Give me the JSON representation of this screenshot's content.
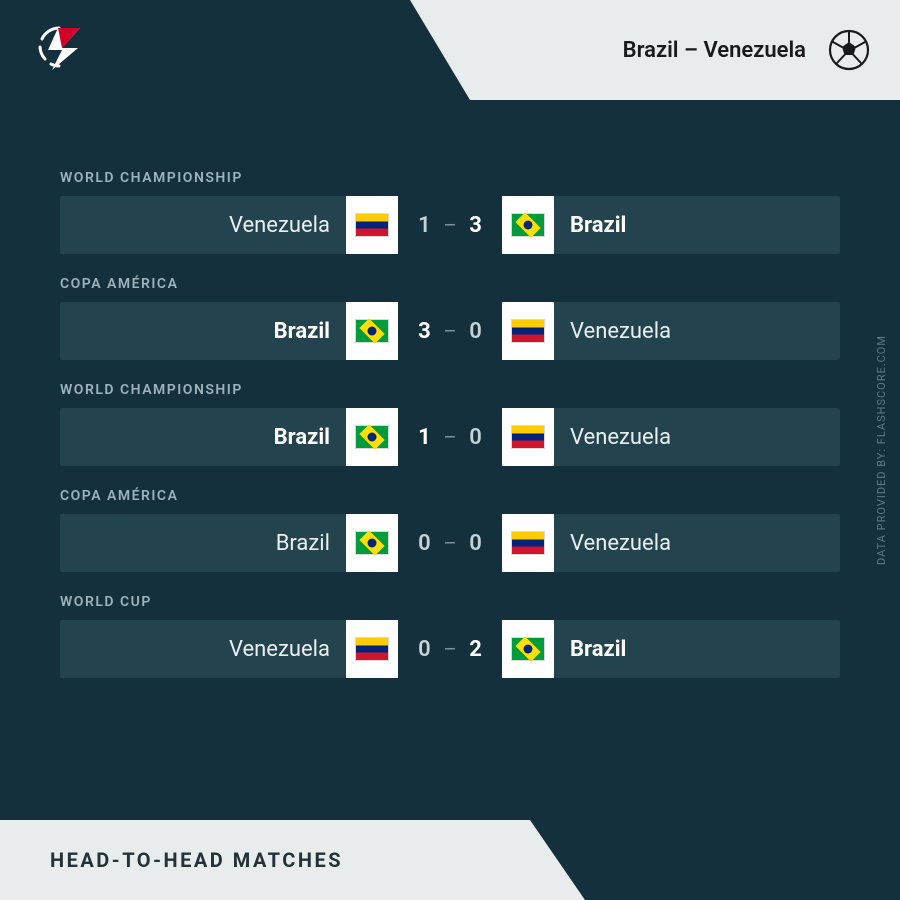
{
  "colors": {
    "page_bg": "#13303c",
    "row_bg": "#23444f",
    "header_light": "#e9eced",
    "label_muted": "#9fb3ba",
    "text": "#e9eff1",
    "text_win": "#ffffff",
    "score_muted": "#c6d2d6",
    "dash": "#7d9297",
    "credit": "#5e7a83",
    "bottom_text": "#233238"
  },
  "header": {
    "title": "Brazil – Venezuela",
    "icon": "soccer-ball"
  },
  "bottom": {
    "title": "HEAD-TO-HEAD MATCHES"
  },
  "credit": "DATA PROVIDED BY: FLASHSCORE.COM",
  "flags": {
    "brazil": "br",
    "venezuela": "ve"
  },
  "matches": [
    {
      "competition": "WORLD CHAMPIONSHIP",
      "home": "Venezuela",
      "home_flag": "ve",
      "home_score": 1,
      "away": "Brazil",
      "away_flag": "br",
      "away_score": 3,
      "winner": "away"
    },
    {
      "competition": "COPA AMÉRICA",
      "home": "Brazil",
      "home_flag": "br",
      "home_score": 3,
      "away": "Venezuela",
      "away_flag": "ve",
      "away_score": 0,
      "winner": "home"
    },
    {
      "competition": "WORLD CHAMPIONSHIP",
      "home": "Brazil",
      "home_flag": "br",
      "home_score": 1,
      "away": "Venezuela",
      "away_flag": "ve",
      "away_score": 0,
      "winner": "home"
    },
    {
      "competition": "COPA AMÉRICA",
      "home": "Brazil",
      "home_flag": "br",
      "home_score": 0,
      "away": "Venezuela",
      "away_flag": "ve",
      "away_score": 0,
      "winner": "draw"
    },
    {
      "competition": "WORLD CUP",
      "home": "Venezuela",
      "home_flag": "ve",
      "home_score": 0,
      "away": "Brazil",
      "away_flag": "br",
      "away_score": 2,
      "winner": "away"
    }
  ]
}
